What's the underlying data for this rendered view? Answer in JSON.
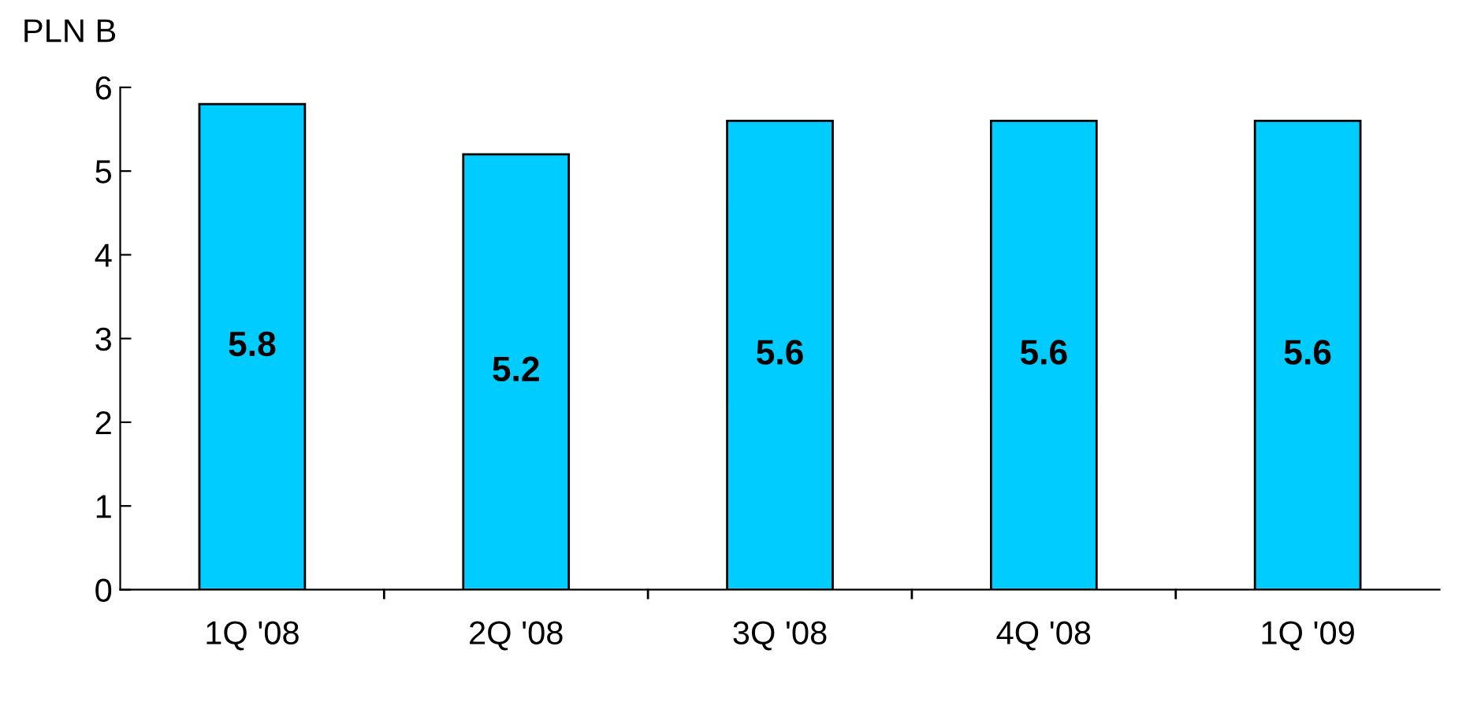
{
  "chart_data": {
    "type": "bar",
    "ylabel": "PLN B",
    "categories": [
      "1Q '08",
      "2Q '08",
      "3Q '08",
      "4Q '08",
      "1Q '09"
    ],
    "values": [
      5.8,
      5.2,
      5.6,
      5.6,
      5.6
    ],
    "color": "#00ccff",
    "data_labels": true,
    "ylim": [
      0,
      6
    ],
    "yticks": [
      0,
      1,
      2,
      3,
      4,
      5,
      6
    ],
    "grid": false,
    "legend": false
  }
}
